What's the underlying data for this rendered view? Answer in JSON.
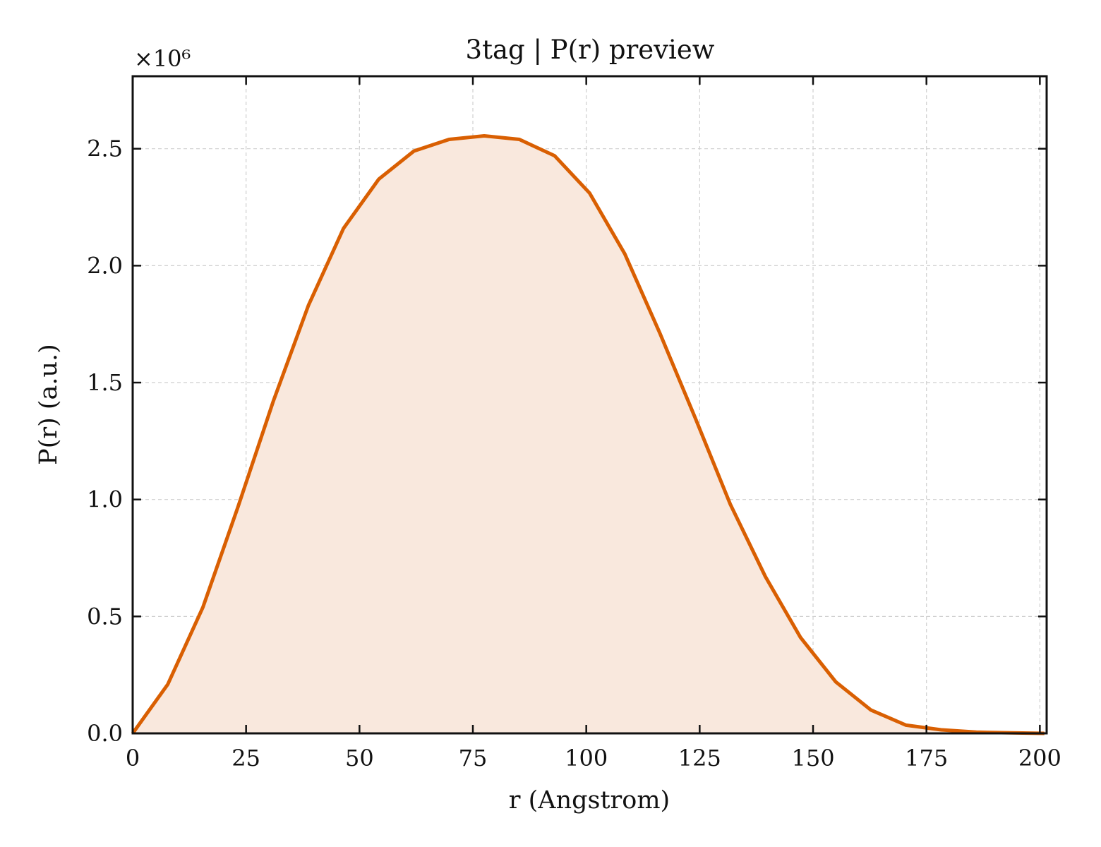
{
  "chart_data": {
    "type": "area",
    "title": "3tag | P(r) preview",
    "xlabel": "r (Angstrom)",
    "ylabel": "P(r) (a.u.)",
    "y_multiplier_label": "×10⁶",
    "y_scale_factor": 1000000,
    "xlim": [
      0,
      201.5
    ],
    "ylim": [
      0,
      2.81
    ],
    "x_ticks": [
      0,
      25,
      50,
      75,
      100,
      125,
      150,
      175,
      200
    ],
    "y_ticks": [
      0.0,
      0.5,
      1.0,
      1.5,
      2.0,
      2.5
    ],
    "x_tick_labels": [
      "0",
      "25",
      "50",
      "75",
      "100",
      "125",
      "150",
      "175",
      "200"
    ],
    "y_tick_labels": [
      "0.0",
      "0.5",
      "1.0",
      "1.5",
      "2.0",
      "2.5"
    ],
    "grid": true,
    "colors": {
      "line": "#d95f02",
      "fill": "#f9e8dd"
    },
    "series": [
      {
        "x": [
          0,
          7.75,
          15.5,
          23.25,
          31.0,
          38.75,
          46.5,
          54.25,
          62.0,
          69.75,
          77.5,
          85.25,
          93.0,
          100.75,
          108.5,
          116.25,
          124.0,
          131.75,
          139.5,
          147.25,
          155.0,
          162.75,
          170.5,
          178.25,
          186.0,
          193.75,
          201.0
        ],
        "y": [
          0.0,
          0.21,
          0.54,
          0.97,
          1.42,
          1.83,
          2.16,
          2.37,
          2.49,
          2.54,
          2.555,
          2.54,
          2.47,
          2.31,
          2.05,
          1.71,
          1.35,
          0.98,
          0.67,
          0.41,
          0.22,
          0.1,
          0.035,
          0.015,
          0.005,
          0.002,
          0.0
        ]
      }
    ]
  }
}
